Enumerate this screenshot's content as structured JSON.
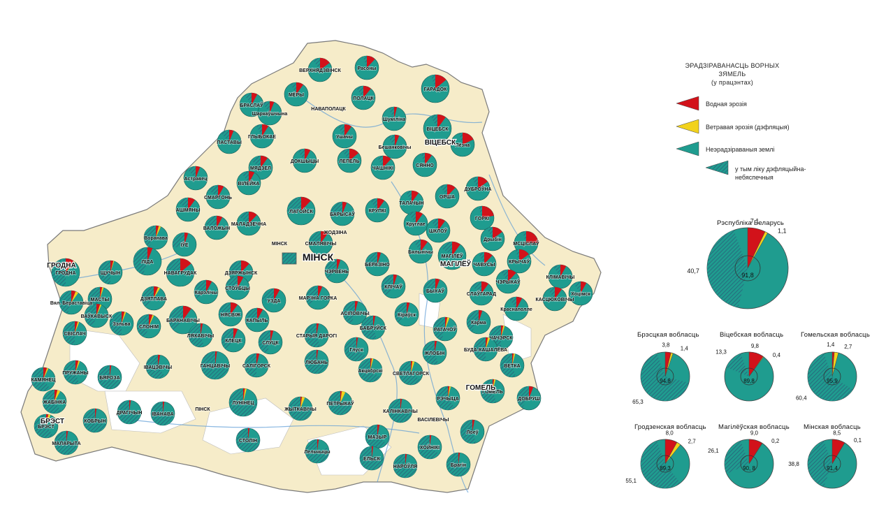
{
  "legend": {
    "title_line1": "ЭРАДЗІРАВАНАСЦЬ  ВОРНЫХ  ЗЯМЕЛЬ",
    "title_line2": "(у працэнтах)",
    "items": [
      {
        "label": "Водная  эрозія",
        "color": "#d2121a"
      },
      {
        "label": "Ветравая  эрозія  (дэфляцыя)",
        "color": "#f2d21c"
      },
      {
        "label": "Неэрадзіраваныя  землі",
        "color": "#1f9c8f"
      },
      {
        "label_line1": "у  тым  ліку дэфляцыйна-",
        "label_line2": "небяспечныя",
        "color": "#2a6f83"
      }
    ]
  },
  "colors": {
    "water": "#d2121a",
    "wind": "#f2d21c",
    "healthy": "#1f9c8f",
    "hatch": "#2a6f83",
    "land": "#f6ecc9",
    "outside": "#ffffff",
    "border": "#7a7a7a",
    "river": "#5b9bd5"
  },
  "big_labels": {
    "minsk": "МІНСК",
    "grodno": "ГРОДНА",
    "vitebsk": "ВІЦЕБСК",
    "mogilev": "МАГІЛЁЎ",
    "gomel": "ГОМЕЛЬ",
    "brest": "БРЭСТ"
  },
  "regions": [
    {
      "title": "Рэспубліка  Беларусь",
      "healthy": 91.8,
      "water": 7.1,
      "wind": 1.1,
      "hatched": 40.7,
      "labels": {
        "center": "91,8",
        "water": "7,1",
        "wind": "1,1",
        "hatched": "40,7"
      }
    },
    {
      "title": "Брэсцкая  вобласць",
      "healthy": 94.8,
      "water": 3.8,
      "wind": 1.4,
      "hatched": 65.3,
      "labels": {
        "center": "94,8",
        "water": "3,8",
        "wind": "1,4",
        "hatched": "65,3"
      }
    },
    {
      "title": "Віцебская  вобласць",
      "healthy": 89.8,
      "water": 9.8,
      "wind": 0.4,
      "hatched": 13.3,
      "labels": {
        "center": "89,8",
        "water": "9,8",
        "wind": "0,4",
        "hatched": "13,3"
      }
    },
    {
      "title": "Гомельская  вобласць",
      "healthy": 95.9,
      "water": 1.4,
      "wind": 2.7,
      "hatched": 60.4,
      "labels": {
        "center": "95,9",
        "water": "1,4",
        "wind": "2,7",
        "hatched": "60,4"
      }
    },
    {
      "title": "Гродзенская  вобласць",
      "healthy": 89.3,
      "water": 8.0,
      "wind": 2.7,
      "hatched": 55.1,
      "labels": {
        "center": "89,3",
        "water": "8,0",
        "wind": "2,7",
        "hatched": "55,1"
      }
    },
    {
      "title": "Магілёўская  вобласць",
      "healthy": 90.8,
      "water": 9.0,
      "wind": 0.2,
      "hatched": 26.1,
      "labels": {
        "center": "90, 8",
        "water": "9,0",
        "wind": "0,2",
        "hatched": "26,1"
      }
    },
    {
      "title": "Мінская  вобласць",
      "healthy": 91.4,
      "water": 8.5,
      "wind": 0.1,
      "hatched": 38.8,
      "labels": {
        "center": "91,4",
        "water": "8,5",
        "wind": "0,1",
        "hatched": "38,8"
      }
    }
  ],
  "districts": [
    {
      "name": "Расоны",
      "water": 12,
      "wind": 0,
      "hatched": 5
    },
    {
      "name": "ВЕРХНЯДЗВІНСК",
      "water": 15,
      "wind": 0,
      "hatched": 10
    },
    {
      "name": "ГАРАДОК",
      "water": 14,
      "wind": 0,
      "hatched": 5
    },
    {
      "name": "МЁРЫ",
      "water": 10,
      "wind": 0,
      "hatched": 8
    },
    {
      "name": "ПОЛАЦК",
      "water": 11,
      "wind": 0,
      "hatched": 10
    },
    {
      "name": "БРАСЛАЎ",
      "water": 8,
      "wind": 0,
      "hatched": 10
    },
    {
      "name": "НАВАПОЛАЦК",
      "water": 0,
      "wind": 0,
      "hatched": 0
    },
    {
      "name": "Шаркаўшчына",
      "water": 6,
      "wind": 0,
      "hatched": 10
    },
    {
      "name": "Шуміліна",
      "water": 4,
      "wind": 0,
      "hatched": 8
    },
    {
      "name": "ВІЦЕБСК",
      "water": 10,
      "wind": 0,
      "hatched": 8
    },
    {
      "name": "ГЛЫБОКАЕ",
      "water": 9,
      "wind": 0,
      "hatched": 8
    },
    {
      "name": "Ушачы",
      "water": 10,
      "wind": 0,
      "hatched": 10
    },
    {
      "name": "Бешанковічы",
      "water": 6,
      "wind": 0,
      "hatched": 10
    },
    {
      "name": "Лёзна",
      "water": 18,
      "wind": 0,
      "hatched": 5
    },
    {
      "name": "ПАСТАВЫ",
      "water": 6,
      "wind": 0,
      "hatched": 12
    },
    {
      "name": "МЯДЗЕЛ",
      "water": 10,
      "wind": 0,
      "hatched": 15
    },
    {
      "name": "ДОКШЫЦЫ",
      "water": 8,
      "wind": 0,
      "hatched": 10
    },
    {
      "name": "ЛЕПЕЛЬ",
      "water": 14,
      "wind": 0,
      "hatched": 10
    },
    {
      "name": "ЧАШНІКІ",
      "water": 12,
      "wind": 0,
      "hatched": 8
    },
    {
      "name": "СЯННО",
      "water": 10,
      "wind": 0,
      "hatched": 5
    },
    {
      "name": "Астравец",
      "water": 6,
      "wind": 0,
      "hatched": 12
    },
    {
      "name": "СМАРГОНЬ",
      "water": 8,
      "wind": 0,
      "hatched": 15
    },
    {
      "name": "ВІЛЕЙКА",
      "water": 8,
      "wind": 0,
      "hatched": 10
    },
    {
      "name": "ЛАГОЙСК",
      "water": 12,
      "wind": 0,
      "hatched": 30
    },
    {
      "name": "БАРЫСАЎ",
      "water": 6,
      "wind": 0,
      "hatched": 25
    },
    {
      "name": "КРУПКІ",
      "water": 10,
      "wind": 0,
      "hatched": 10
    },
    {
      "name": "ТАЛАЧЫН",
      "water": 10,
      "wind": 0,
      "hatched": 8
    },
    {
      "name": "ОРША",
      "water": 12,
      "wind": 0,
      "hatched": 10
    },
    {
      "name": "ДУБРОЎНА",
      "water": 15,
      "wind": 0,
      "hatched": 8
    },
    {
      "name": "АШМЯНЫ",
      "water": 10,
      "wind": 0,
      "hatched": 15
    },
    {
      "name": "МАЛАДЗЕЧНА",
      "water": 12,
      "wind": 0,
      "hatched": 15
    },
    {
      "name": "ГОРКІ",
      "water": 22,
      "wind": 0,
      "hatched": 5
    },
    {
      "name": "Воранава",
      "water": 4,
      "wind": 3,
      "hatched": 40
    },
    {
      "name": "ВАЛОЖЫН",
      "water": 8,
      "wind": 0,
      "hatched": 20
    },
    {
      "name": "ЖОДЗІНА",
      "water": 0,
      "wind": 0,
      "hatched": 0
    },
    {
      "name": "Круглае",
      "water": 10,
      "wind": 0,
      "hatched": 10
    },
    {
      "name": "ШКЛОЎ",
      "water": 10,
      "wind": 0,
      "hatched": 10
    },
    {
      "name": "Дрыбін",
      "water": 15,
      "wind": 0,
      "hatched": 8
    },
    {
      "name": "МСЦІСЛАЎ",
      "water": 25,
      "wind": 0,
      "hatched": 5
    },
    {
      "name": "ГРОДНА",
      "water": 10,
      "wind": 2,
      "hatched": 50
    },
    {
      "name": "ІЎЕ",
      "water": 5,
      "wind": 0,
      "hatched": 30
    },
    {
      "name": "ЛІДА",
      "water": 6,
      "wind": 0,
      "hatched": 45
    },
    {
      "name": "СМАЛЯВІЧЫ",
      "water": 10,
      "wind": 0,
      "hatched": 25
    },
    {
      "name": "МІНСК",
      "water": 0,
      "wind": 0,
      "hatched": 0
    },
    {
      "name": "Бялынічы",
      "water": 10,
      "wind": 0,
      "hatched": 10
    },
    {
      "name": "ЧАВУСЫ",
      "water": 12,
      "wind": 0,
      "hatched": 8
    },
    {
      "name": "КРЫЧАЎ",
      "water": 15,
      "wind": 0,
      "hatched": 5
    },
    {
      "name": "ЩУЧЫН",
      "water": 4,
      "wind": 1,
      "hatched": 50
    },
    {
      "name": "НАВАГРУДАК",
      "water": 14,
      "wind": 0,
      "hatched": 30
    },
    {
      "name": "ДЗЯРЖЫНСК",
      "water": 12,
      "wind": 0,
      "hatched": 25
    },
    {
      "name": "ЧЭРВЕНЬ",
      "water": 5,
      "wind": 0,
      "hatched": 35
    },
    {
      "name": "БЕРАЗІНО",
      "water": 5,
      "wind": 0,
      "hatched": 30
    },
    {
      "name": "МАГІЛЁЎ",
      "water": 10,
      "wind": 0,
      "hatched": 15
    },
    {
      "name": "ЧЭРЫКАЎ",
      "water": 12,
      "wind": 0,
      "hatched": 10
    },
    {
      "name": "КЛІМАВІЧЫ",
      "water": 8,
      "wind": 0,
      "hatched": 10
    },
    {
      "name": "МАСТЫ",
      "water": 3,
      "wind": 2,
      "hatched": 45
    },
    {
      "name": "ДЗЯТЛАВА",
      "water": 6,
      "wind": 3,
      "hatched": 40
    },
    {
      "name": "Карэлічы",
      "water": 8,
      "wind": 0,
      "hatched": 35
    },
    {
      "name": "СТОЎБЦЫ",
      "water": 8,
      "wind": 0,
      "hatched": 30
    },
    {
      "name": "УЗДА",
      "water": 8,
      "wind": 0,
      "hatched": 25
    },
    {
      "name": "МАР'ІНА ГОРКА",
      "water": 6,
      "wind": 0,
      "hatched": 35
    },
    {
      "name": "КЛІЧАЎ",
      "water": 5,
      "wind": 0,
      "hatched": 40
    },
    {
      "name": "БЫХАЎ",
      "water": 6,
      "wind": 0,
      "hatched": 30
    },
    {
      "name": "СЛАЎГАРАД",
      "water": 10,
      "wind": 0,
      "hatched": 15
    },
    {
      "name": "КАСЦЮКОВІЧЫ",
      "water": 10,
      "wind": 0,
      "hatched": 10
    },
    {
      "name": "Хоцімск",
      "water": 8,
      "wind": 0,
      "hatched": 10
    },
    {
      "name": "Вял. Бераставіца",
      "water": 6,
      "wind": 4,
      "hatched": 45
    },
    {
      "name": "ВАЎКАВЫСК",
      "water": 5,
      "wind": 2,
      "hatched": 45
    },
    {
      "name": "Зэльва",
      "water": 4,
      "wind": 2,
      "hatched": 50
    },
    {
      "name": "БАРАНАВІЧЫ",
      "water": 10,
      "wind": 0,
      "hatched": 40
    },
    {
      "name": "НЯСВІЖ",
      "water": 10,
      "wind": 0,
      "hatched": 30
    },
    {
      "name": "КАПЫЛЬ",
      "water": 8,
      "wind": 0,
      "hatched": 30
    },
    {
      "name": "АСІПОВІЧЫ",
      "water": 4,
      "wind": 0,
      "hatched": 45
    },
    {
      "name": "Кіраўск",
      "water": 4,
      "wind": 0,
      "hatched": 40
    },
    {
      "name": "Краснаполле",
      "water": 8,
      "wind": 0,
      "hatched": 10
    },
    {
      "name": "СВІСЛАЧ",
      "water": 4,
      "wind": 2,
      "hatched": 50
    },
    {
      "name": "СЛОНІМ",
      "water": 5,
      "wind": 2,
      "hatched": 45
    },
    {
      "name": "ЛЯХАВІЧЫ",
      "water": 3,
      "wind": 0,
      "hatched": 55
    },
    {
      "name": "КЛЕЦК",
      "water": 6,
      "wind": 0,
      "hatched": 40
    },
    {
      "name": "СЛУЦК",
      "water": 4,
      "wind": 0,
      "hatched": 45
    },
    {
      "name": "СТАРЫЯ ДАРОГІ",
      "water": 3,
      "wind": 0,
      "hatched": 55
    },
    {
      "name": "БАБРУЙСК",
      "water": 3,
      "wind": 0,
      "hatched": 55
    },
    {
      "name": "РАГАЧОЎ",
      "water": 3,
      "wind": 3,
      "hatched": 45
    },
    {
      "name": "Карма",
      "water": 5,
      "wind": 0,
      "hatched": 40
    },
    {
      "name": "ЧАЧЭРСК",
      "water": 3,
      "wind": 2,
      "hatched": 50
    },
    {
      "name": "ПРУЖАНЫ",
      "water": 4,
      "wind": 2,
      "hatched": 55
    },
    {
      "name": "ІВАЦЭВІЧЫ",
      "water": 3,
      "wind": 0,
      "hatched": 60
    },
    {
      "name": "ГАНЦАВІЧЫ",
      "water": 2,
      "wind": 0,
      "hatched": 70
    },
    {
      "name": "САЛІГОРСК",
      "water": 4,
      "wind": 0,
      "hatched": 50
    },
    {
      "name": "ЛЮБАНЬ",
      "water": 2,
      "wind": 0,
      "hatched": 70
    },
    {
      "name": "Глуск",
      "water": 2,
      "wind": 0,
      "hatched": 65
    },
    {
      "name": "ЖЛОБІН",
      "water": 3,
      "wind": 0,
      "hatched": 55
    },
    {
      "name": "БУДА-КАШАЛЁВА",
      "water": 3,
      "wind": 3,
      "hatched": 50
    },
    {
      "name": "ВЕТКА",
      "water": 2,
      "wind": 2,
      "hatched": 55
    },
    {
      "name": "КАМЯНЕЦ",
      "water": 5,
      "wind": 2,
      "hatched": 60
    },
    {
      "name": "БЯРОЗА",
      "water": 2,
      "wind": 0,
      "hatched": 70
    },
    {
      "name": "Акцябрскі",
      "water": 2,
      "wind": 2,
      "hatched": 65
    },
    {
      "name": "СВЕТЛАГОРСК",
      "water": 2,
      "wind": 3,
      "hatched": 65
    },
    {
      "name": "РЭЧЫЦА",
      "water": 2,
      "wind": 2,
      "hatched": 60
    },
    {
      "name": "ГОМЕЛЬ",
      "water": 2,
      "wind": 2,
      "hatched": 55
    },
    {
      "name": "ДОБРУШ",
      "water": 6,
      "wind": 0,
      "hatched": 40
    },
    {
      "name": "ЖАБІНКА",
      "water": 4,
      "wind": 4,
      "hatched": 60
    },
    {
      "name": "КОБРЫН",
      "water": 2,
      "wind": 0,
      "hatched": 70
    },
    {
      "name": "ДРАГІЧЫН",
      "water": 2,
      "wind": 0,
      "hatched": 70
    },
    {
      "name": "ІВАНАВА",
      "water": 2,
      "wind": 0,
      "hatched": 70
    },
    {
      "name": "ЛУНІНЕЦ",
      "water": 2,
      "wind": 2,
      "hatched": 75
    },
    {
      "name": "ЖЫТКАВІЧЫ",
      "water": 2,
      "wind": 4,
      "hatched": 75
    },
    {
      "name": "ПЕТРЫКАЎ",
      "water": 2,
      "wind": 5,
      "hatched": 75
    },
    {
      "name": "КАЛІНКАВІЧЫ",
      "water": 2,
      "wind": 0,
      "hatched": 70
    },
    {
      "name": "ВАСІЛЕВІЧЫ",
      "water": 0,
      "wind": 0,
      "hatched": 0
    },
    {
      "name": "Лоеў",
      "water": 3,
      "wind": 0,
      "hatched": 55
    },
    {
      "name": "БРЭСТ",
      "water": 3,
      "wind": 3,
      "hatched": 60
    },
    {
      "name": "МАЛАРЫТА",
      "water": 2,
      "wind": 0,
      "hatched": 75
    },
    {
      "name": "ПІНСК",
      "water": 0,
      "wind": 0,
      "hatched": 0
    },
    {
      "name": "СТОЛІН",
      "water": 2,
      "wind": 0,
      "hatched": 75
    },
    {
      "name": "Лельчыцы",
      "water": 2,
      "wind": 0,
      "hatched": 80
    },
    {
      "name": "МАЗЫР",
      "water": 3,
      "wind": 0,
      "hatched": 65
    },
    {
      "name": "ЕЛЬСК",
      "water": 2,
      "wind": 0,
      "hatched": 75
    },
    {
      "name": "НАРОЎЛЯ",
      "water": 2,
      "wind": 0,
      "hatched": 75
    },
    {
      "name": "ХОЙНІКІ",
      "water": 2,
      "wind": 0,
      "hatched": 65
    },
    {
      "name": "Брагін",
      "water": 2,
      "wind": 0,
      "hatched": 70
    }
  ]
}
